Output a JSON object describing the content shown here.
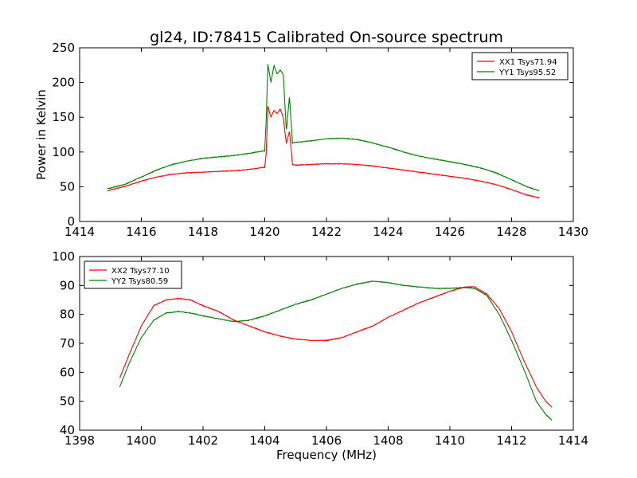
{
  "title": "gl24, ID:78415 Calibrated On-source spectrum",
  "chart_data": [
    {
      "type": "line",
      "title": "gl24, ID:78415 Calibrated On-source spectrum",
      "xlabel": "",
      "ylabel": "Power in Kelvin",
      "xlim": [
        1414,
        1430
      ],
      "ylim": [
        0,
        250
      ],
      "xticks": [
        1414,
        1416,
        1418,
        1420,
        1422,
        1424,
        1426,
        1428,
        1430
      ],
      "yticks": [
        0,
        50,
        100,
        150,
        200,
        250
      ],
      "grid": false,
      "legend_position": "top-right",
      "series": [
        {
          "name": "XX1 Tsys71.94",
          "color": "#ff0000",
          "points": [
            [
              1414.9,
              44
            ],
            [
              1415.5,
              51
            ],
            [
              1416.0,
              58
            ],
            [
              1416.5,
              64
            ],
            [
              1417.0,
              68
            ],
            [
              1417.5,
              70
            ],
            [
              1418.0,
              71
            ],
            [
              1418.5,
              72
            ],
            [
              1419.0,
              73
            ],
            [
              1419.5,
              75
            ],
            [
              1420.0,
              78
            ],
            [
              1420.05,
              100
            ],
            [
              1420.1,
              166
            ],
            [
              1420.2,
              150
            ],
            [
              1420.3,
              160
            ],
            [
              1420.4,
              155
            ],
            [
              1420.5,
              162
            ],
            [
              1420.6,
              150
            ],
            [
              1420.7,
              112
            ],
            [
              1420.8,
              130
            ],
            [
              1420.9,
              82
            ],
            [
              1421.0,
              81
            ],
            [
              1421.5,
              82
            ],
            [
              1422.0,
              83
            ],
            [
              1422.5,
              83
            ],
            [
              1423.0,
              82
            ],
            [
              1423.5,
              80
            ],
            [
              1424.0,
              77
            ],
            [
              1424.5,
              74
            ],
            [
              1425.0,
              71
            ],
            [
              1425.5,
              68
            ],
            [
              1426.0,
              65
            ],
            [
              1426.5,
              62
            ],
            [
              1427.0,
              58
            ],
            [
              1427.5,
              53
            ],
            [
              1428.0,
              46
            ],
            [
              1428.5,
              38
            ],
            [
              1428.9,
              34
            ]
          ]
        },
        {
          "name": "YY1 Tsys95.52",
          "color": "#008000",
          "points": [
            [
              1414.9,
              47
            ],
            [
              1415.5,
              54
            ],
            [
              1416.0,
              64
            ],
            [
              1416.5,
              74
            ],
            [
              1417.0,
              82
            ],
            [
              1417.5,
              87
            ],
            [
              1418.0,
              91
            ],
            [
              1418.5,
              93
            ],
            [
              1419.0,
              95
            ],
            [
              1419.5,
              98
            ],
            [
              1420.0,
              102
            ],
            [
              1420.05,
              150
            ],
            [
              1420.1,
              226
            ],
            [
              1420.2,
              200
            ],
            [
              1420.3,
              225
            ],
            [
              1420.4,
              212
            ],
            [
              1420.5,
              218
            ],
            [
              1420.6,
              212
            ],
            [
              1420.7,
              130
            ],
            [
              1420.8,
              180
            ],
            [
              1420.9,
              113
            ],
            [
              1421.0,
              114
            ],
            [
              1421.5,
              116
            ],
            [
              1422.0,
              119
            ],
            [
              1422.5,
              120
            ],
            [
              1423.0,
              118
            ],
            [
              1423.5,
              113
            ],
            [
              1424.0,
              107
            ],
            [
              1424.5,
              100
            ],
            [
              1425.0,
              94
            ],
            [
              1425.5,
              90
            ],
            [
              1426.0,
              86
            ],
            [
              1426.5,
              82
            ],
            [
              1427.0,
              77
            ],
            [
              1427.5,
              70
            ],
            [
              1428.0,
              60
            ],
            [
              1428.5,
              50
            ],
            [
              1428.9,
              44
            ]
          ]
        }
      ]
    },
    {
      "type": "line",
      "title": "",
      "xlabel": "Frequency (MHz)",
      "ylabel": "",
      "xlim": [
        1398,
        1414
      ],
      "ylim": [
        40,
        100
      ],
      "xticks": [
        1398,
        1400,
        1402,
        1404,
        1406,
        1408,
        1410,
        1412,
        1414
      ],
      "yticks": [
        40,
        50,
        60,
        70,
        80,
        90,
        100
      ],
      "grid": false,
      "legend_position": "top-left",
      "series": [
        {
          "name": "XX2 Tsys77.10",
          "color": "#ff0000",
          "points": [
            [
              1399.3,
              58
            ],
            [
              1399.6,
              66
            ],
            [
              1400.0,
              76
            ],
            [
              1400.4,
              83
            ],
            [
              1400.8,
              85
            ],
            [
              1401.2,
              85.5
            ],
            [
              1401.6,
              85
            ],
            [
              1402.0,
              83
            ],
            [
              1402.5,
              81
            ],
            [
              1403.0,
              78
            ],
            [
              1403.5,
              76
            ],
            [
              1404.0,
              74
            ],
            [
              1404.5,
              72.5
            ],
            [
              1405.0,
              71.5
            ],
            [
              1405.5,
              71
            ],
            [
              1406.0,
              71
            ],
            [
              1406.5,
              72
            ],
            [
              1407.0,
              74
            ],
            [
              1407.5,
              76
            ],
            [
              1408.0,
              79
            ],
            [
              1408.5,
              81.5
            ],
            [
              1409.0,
              84
            ],
            [
              1409.5,
              86
            ],
            [
              1410.0,
              88
            ],
            [
              1410.5,
              89.5
            ],
            [
              1410.8,
              89.5
            ],
            [
              1411.2,
              87
            ],
            [
              1411.6,
              82
            ],
            [
              1412.0,
              74
            ],
            [
              1412.4,
              64
            ],
            [
              1412.8,
              55
            ],
            [
              1413.1,
              50
            ],
            [
              1413.3,
              48
            ]
          ]
        },
        {
          "name": "YY2 Tsys80.59",
          "color": "#008000",
          "points": [
            [
              1399.3,
              55
            ],
            [
              1399.6,
              63
            ],
            [
              1400.0,
              72
            ],
            [
              1400.4,
              78
            ],
            [
              1400.8,
              80.5
            ],
            [
              1401.2,
              81
            ],
            [
              1401.6,
              80.5
            ],
            [
              1402.0,
              79.5
            ],
            [
              1402.5,
              78.5
            ],
            [
              1403.0,
              77.5
            ],
            [
              1403.5,
              78
            ],
            [
              1404.0,
              79.5
            ],
            [
              1404.5,
              81.5
            ],
            [
              1405.0,
              83.5
            ],
            [
              1405.5,
              85
            ],
            [
              1406.0,
              87
            ],
            [
              1406.5,
              89
            ],
            [
              1407.0,
              90.5
            ],
            [
              1407.5,
              91.5
            ],
            [
              1408.0,
              91
            ],
            [
              1408.5,
              90
            ],
            [
              1409.0,
              89.5
            ],
            [
              1409.5,
              89
            ],
            [
              1410.0,
              89
            ],
            [
              1410.5,
              89.3
            ],
            [
              1410.8,
              89
            ],
            [
              1411.2,
              86.5
            ],
            [
              1411.6,
              80
            ],
            [
              1412.0,
              71
            ],
            [
              1412.4,
              61
            ],
            [
              1412.8,
              50
            ],
            [
              1413.1,
              45.5
            ],
            [
              1413.3,
              43.5
            ]
          ]
        }
      ]
    }
  ]
}
